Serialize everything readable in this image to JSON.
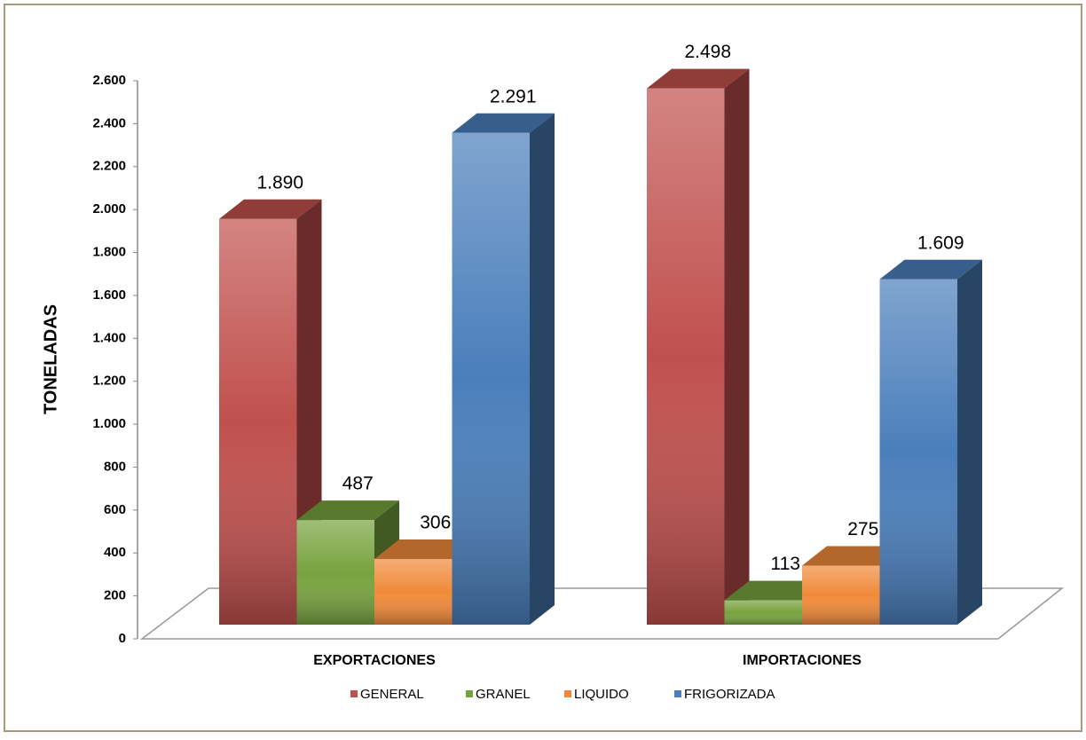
{
  "chart_data": {
    "type": "bar3d",
    "y_label": "TONELADAS",
    "categories": [
      "EXPORTACIONES",
      "IMPORTACIONES"
    ],
    "series": [
      {
        "name": "GENERAL",
        "color": "#c0504d",
        "values": [
          1890,
          2498
        ],
        "value_labels": [
          "1.890",
          "2.498"
        ]
      },
      {
        "name": "GRANEL",
        "color": "#77a33e",
        "values": [
          487,
          113
        ],
        "value_labels": [
          "487",
          "113"
        ]
      },
      {
        "name": "LIQUIDO",
        "color": "#f08a3a",
        "values": [
          306,
          275
        ],
        "value_labels": [
          "306",
          "275"
        ]
      },
      {
        "name": "FRIGORIZADA",
        "color": "#4a7ebb",
        "values": [
          2291,
          1609
        ],
        "value_labels": [
          "2.291",
          "1.609"
        ]
      }
    ],
    "ylim": [
      0,
      2600
    ],
    "yticks": [
      0,
      200,
      400,
      600,
      800,
      {
        "value": 1000,
        "label": "1.000"
      },
      {
        "value": 1200,
        "label": "1.200"
      },
      {
        "value": 1400,
        "label": "1.400"
      },
      {
        "value": 1600,
        "label": "1.600"
      },
      {
        "value": 1800,
        "label": "1.800"
      },
      {
        "value": 2000,
        "label": "2.000"
      },
      {
        "value": 2200,
        "label": "2.200"
      },
      {
        "value": 2400,
        "label": "2.400"
      },
      {
        "value": 2600,
        "label": "2.600"
      }
    ],
    "grid": false,
    "legend": "bottom"
  }
}
